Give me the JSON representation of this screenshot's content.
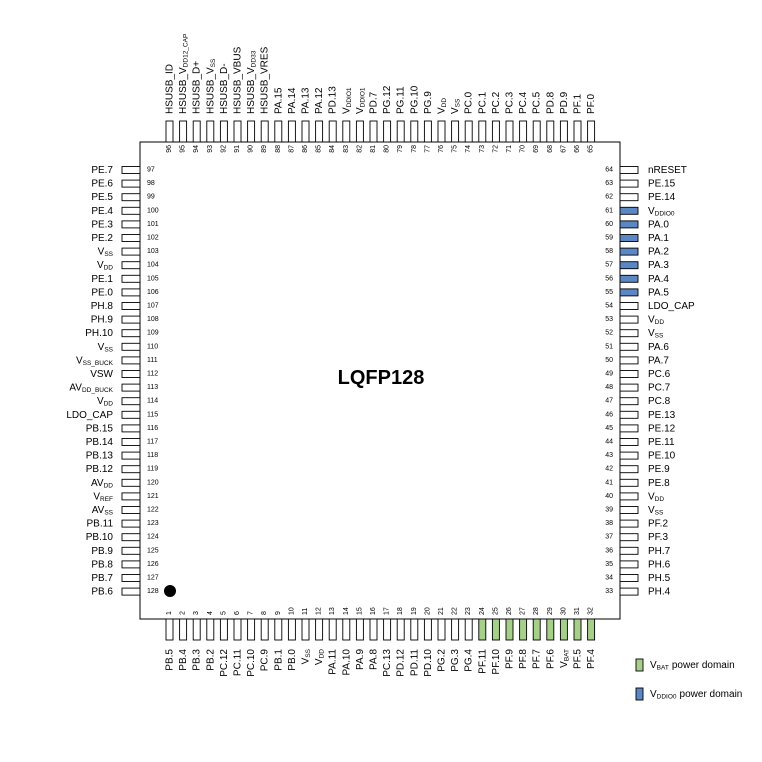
{
  "package_label": "LQFP128",
  "pins": {
    "left": [
      {
        "number": 97,
        "label": "PE.7"
      },
      {
        "number": 98,
        "label": "PE.6"
      },
      {
        "number": 99,
        "label": "PE.5"
      },
      {
        "number": 100,
        "label": "PE.4"
      },
      {
        "number": 101,
        "label": "PE.3"
      },
      {
        "number": 102,
        "label": "PE.2"
      },
      {
        "number": 103,
        "label": "V",
        "sub": "SS"
      },
      {
        "number": 104,
        "label": "V",
        "sub": "DD"
      },
      {
        "number": 105,
        "label": "PE.1"
      },
      {
        "number": 106,
        "label": "PE.0"
      },
      {
        "number": 107,
        "label": "PH.8"
      },
      {
        "number": 108,
        "label": "PH.9"
      },
      {
        "number": 109,
        "label": "PH.10"
      },
      {
        "number": 110,
        "label": "V",
        "sub": "SS"
      },
      {
        "number": 111,
        "label": "V",
        "sub": "SS_BUCK"
      },
      {
        "number": 112,
        "label": "VSW"
      },
      {
        "number": 113,
        "label": "AV",
        "sub": "DD_BUCK"
      },
      {
        "number": 114,
        "label": "V",
        "sub": "DD"
      },
      {
        "number": 115,
        "label": "LDO_CAP"
      },
      {
        "number": 116,
        "label": "PB.15"
      },
      {
        "number": 117,
        "label": "PB.14"
      },
      {
        "number": 118,
        "label": "PB.13"
      },
      {
        "number": 119,
        "label": "PB.12"
      },
      {
        "number": 120,
        "label": "AV",
        "sub": "DD"
      },
      {
        "number": 121,
        "label": "V",
        "sub": "REF"
      },
      {
        "number": 122,
        "label": "AV",
        "sub": "SS"
      },
      {
        "number": 123,
        "label": "PB.11"
      },
      {
        "number": 124,
        "label": "PB.10"
      },
      {
        "number": 125,
        "label": "PB.9"
      },
      {
        "number": 126,
        "label": "PB.8"
      },
      {
        "number": 127,
        "label": "PB.7"
      },
      {
        "number": 128,
        "label": "PB.6"
      }
    ],
    "right": [
      {
        "number": 64,
        "label": "nRESET"
      },
      {
        "number": 63,
        "label": "PE.15"
      },
      {
        "number": 62,
        "label": "PE.14"
      },
      {
        "number": 61,
        "label": "V",
        "sub": "DDIO0",
        "fill": "#5b87c5"
      },
      {
        "number": 60,
        "label": "PA.0",
        "fill": "#5b87c5"
      },
      {
        "number": 59,
        "label": "PA.1",
        "fill": "#5b87c5"
      },
      {
        "number": 58,
        "label": "PA.2",
        "fill": "#5b87c5"
      },
      {
        "number": 57,
        "label": "PA.3",
        "fill": "#5b87c5"
      },
      {
        "number": 56,
        "label": "PA.4",
        "fill": "#5b87c5"
      },
      {
        "number": 55,
        "label": "PA.5",
        "fill": "#5b87c5"
      },
      {
        "number": 54,
        "label": "LDO_CAP"
      },
      {
        "number": 53,
        "label": "V",
        "sub": "DD"
      },
      {
        "number": 52,
        "label": "V",
        "sub": "SS"
      },
      {
        "number": 51,
        "label": "PA.6"
      },
      {
        "number": 50,
        "label": "PA.7"
      },
      {
        "number": 49,
        "label": "PC.6"
      },
      {
        "number": 48,
        "label": "PC.7"
      },
      {
        "number": 47,
        "label": "PC.8"
      },
      {
        "number": 46,
        "label": "PE.13"
      },
      {
        "number": 45,
        "label": "PE.12"
      },
      {
        "number": 44,
        "label": "PE.11"
      },
      {
        "number": 43,
        "label": "PE.10"
      },
      {
        "number": 42,
        "label": "PE.9"
      },
      {
        "number": 41,
        "label": "PE.8"
      },
      {
        "number": 40,
        "label": "V",
        "sub": "DD"
      },
      {
        "number": 39,
        "label": "V",
        "sub": "SS"
      },
      {
        "number": 38,
        "label": "PF.2"
      },
      {
        "number": 37,
        "label": "PF.3"
      },
      {
        "number": 36,
        "label": "PH.7"
      },
      {
        "number": 35,
        "label": "PH.6"
      },
      {
        "number": 34,
        "label": "PH.5"
      },
      {
        "number": 33,
        "label": "PH.4"
      }
    ],
    "top": [
      {
        "number": 96,
        "label": "HSUSB_ID"
      },
      {
        "number": 95,
        "label": "HSUSB_V",
        "sub": "DD12_CAP"
      },
      {
        "number": 94,
        "label": "HSUSB_D+"
      },
      {
        "number": 93,
        "label": "HSUSB_V",
        "sub": "SS"
      },
      {
        "number": 92,
        "label": "HSUSB_D-"
      },
      {
        "number": 91,
        "label": "HSUSB_VBUS"
      },
      {
        "number": 90,
        "label": "HSUSB_V",
        "sub": "DD33"
      },
      {
        "number": 89,
        "label": "HSUSB_VRES"
      },
      {
        "number": 88,
        "label": "PA.15"
      },
      {
        "number": 87,
        "label": "PA.14"
      },
      {
        "number": 86,
        "label": "PA.13"
      },
      {
        "number": 85,
        "label": "PA.12"
      },
      {
        "number": 84,
        "label": "PD.13"
      },
      {
        "number": 83,
        "label": "V",
        "sub": "DDIO1"
      },
      {
        "number": 82,
        "label": "V",
        "sub": "DDIO1"
      },
      {
        "number": 81,
        "label": "PD.7"
      },
      {
        "number": 80,
        "label": "PG.12"
      },
      {
        "number": 79,
        "label": "PG.11"
      },
      {
        "number": 78,
        "label": "PG.10"
      },
      {
        "number": 77,
        "label": "PG.9"
      },
      {
        "number": 76,
        "label": "V",
        "sub": "DD"
      },
      {
        "number": 75,
        "label": "V",
        "sub": "SS"
      },
      {
        "number": 74,
        "label": "PC.0"
      },
      {
        "number": 73,
        "label": "PC.1"
      },
      {
        "number": 72,
        "label": "PC.2"
      },
      {
        "number": 71,
        "label": "PC.3"
      },
      {
        "number": 70,
        "label": "PC.4"
      },
      {
        "number": 69,
        "label": "PC.5"
      },
      {
        "number": 68,
        "label": "PD.8"
      },
      {
        "number": 67,
        "label": "PD.9"
      },
      {
        "number": 66,
        "label": "PF.1"
      },
      {
        "number": 65,
        "label": "PF.0"
      }
    ],
    "bottom": [
      {
        "number": 1,
        "label": "PB.5"
      },
      {
        "number": 2,
        "label": "PB.4"
      },
      {
        "number": 3,
        "label": "PB.3"
      },
      {
        "number": 4,
        "label": "PB.2"
      },
      {
        "number": 5,
        "label": "PC.12"
      },
      {
        "number": 6,
        "label": "PC.11"
      },
      {
        "number": 7,
        "label": "PC.10"
      },
      {
        "number": 8,
        "label": "PC.9"
      },
      {
        "number": 9,
        "label": "PB.1"
      },
      {
        "number": 10,
        "label": "PB.0"
      },
      {
        "number": 11,
        "label": "V",
        "sub": "SS"
      },
      {
        "number": 12,
        "label": "V",
        "sub": "DD"
      },
      {
        "number": 13,
        "label": "PA.11"
      },
      {
        "number": 14,
        "label": "PA.10"
      },
      {
        "number": 15,
        "label": "PA.9"
      },
      {
        "number": 16,
        "label": "PA.8"
      },
      {
        "number": 17,
        "label": "PC.13"
      },
      {
        "number": 18,
        "label": "PD.12"
      },
      {
        "number": 19,
        "label": "PD.11"
      },
      {
        "number": 20,
        "label": "PD.10"
      },
      {
        "number": 21,
        "label": "PG.2"
      },
      {
        "number": 22,
        "label": "PG.3"
      },
      {
        "number": 23,
        "label": "PG.4"
      },
      {
        "number": 24,
        "label": "PF.11",
        "fill": "#a6cf8a"
      },
      {
        "number": 25,
        "label": "PF.10",
        "fill": "#a6cf8a"
      },
      {
        "number": 26,
        "label": "PF.9",
        "fill": "#a6cf8a"
      },
      {
        "number": 27,
        "label": "PF.8",
        "fill": "#a6cf8a"
      },
      {
        "number": 28,
        "label": "PF.7",
        "fill": "#a6cf8a"
      },
      {
        "number": 29,
        "label": "PF.6",
        "fill": "#a6cf8a"
      },
      {
        "number": 30,
        "label": "V",
        "sub": "BAT",
        "fill": "#a6cf8a"
      },
      {
        "number": 31,
        "label": "PF.5",
        "fill": "#a6cf8a"
      },
      {
        "number": 32,
        "label": "PF.4",
        "fill": "#a6cf8a"
      }
    ]
  },
  "legend": [
    {
      "label": "V",
      "sub": "BAT",
      "suffix": "power domain",
      "fill": "#a6cf8a"
    },
    {
      "label": "V",
      "sub": "DDIO0",
      "suffix": "power domain",
      "fill": "#5b87c5"
    }
  ]
}
